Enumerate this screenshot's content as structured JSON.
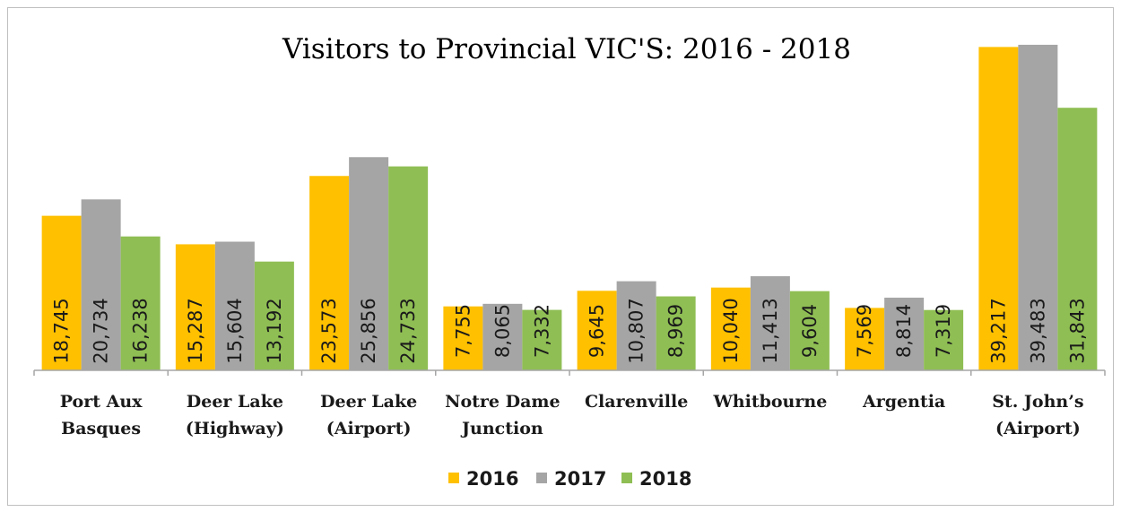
{
  "chart_data": {
    "type": "bar",
    "title": "Visitors to Provincial VIC'S: 2016 - 2018",
    "xlabel": "",
    "ylabel": "",
    "ylim": [
      0,
      41000
    ],
    "grid": false,
    "legend_position": "bottom",
    "categories": [
      [
        "Port Aux",
        "Basques"
      ],
      [
        "Deer Lake",
        "(Highway)"
      ],
      [
        "Deer Lake",
        "(Airport)"
      ],
      [
        "Notre Dame",
        "Junction"
      ],
      [
        "Clarenville"
      ],
      [
        "Whitbourne"
      ],
      [
        "Argentia"
      ],
      [
        "St. John’s",
        "(Airport)"
      ]
    ],
    "series": [
      {
        "name": "2016",
        "color": "#FFC000",
        "values": [
          18745,
          15287,
          23573,
          7755,
          9645,
          10040,
          7569,
          39217
        ],
        "labels": [
          "18,745",
          "15,287",
          "23,573",
          "7,755",
          "9,645",
          "10,040",
          "7,569",
          "39,217"
        ]
      },
      {
        "name": "2017",
        "color": "#A5A5A5",
        "values": [
          20734,
          15604,
          25856,
          8065,
          10807,
          11413,
          8814,
          39483
        ],
        "labels": [
          "20,734",
          "15,604",
          "25,856",
          "8,065",
          "10,807",
          "11,413",
          "8,814",
          "39,483"
        ]
      },
      {
        "name": "2018",
        "color": "#8FBE54",
        "values": [
          16238,
          13192,
          24733,
          7332,
          8969,
          9604,
          7319,
          31843
        ],
        "labels": [
          "16,238",
          "13,192",
          "24,733",
          "7,332",
          "8,969",
          "9,604",
          "7,319",
          "31,843"
        ]
      }
    ]
  }
}
